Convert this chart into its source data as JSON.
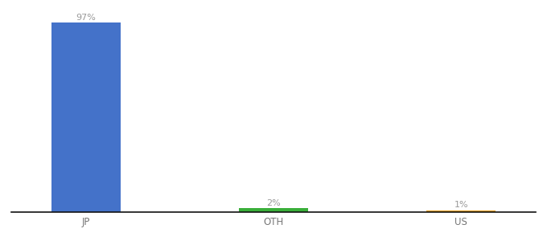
{
  "categories": [
    "JP",
    "OTH",
    "US"
  ],
  "values": [
    97,
    2,
    1
  ],
  "bar_colors": [
    "#4472c9",
    "#3aaf3a",
    "#e8a020"
  ],
  "value_labels": [
    "97%",
    "2%",
    "1%"
  ],
  "ylim": [
    0,
    105
  ],
  "background_color": "#ffffff",
  "label_color": "#999999",
  "bar_width": 0.55,
  "label_fontsize": 8,
  "tick_fontsize": 8.5,
  "tick_color": "#777777"
}
